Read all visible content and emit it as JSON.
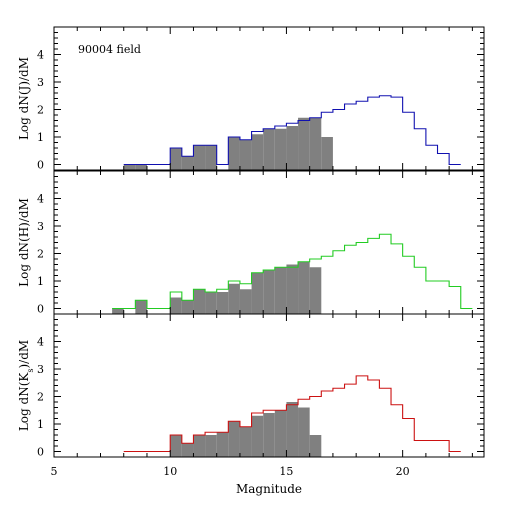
{
  "chart_data": {
    "type": "histogram-stack",
    "xlabel": "Magnitude",
    "xlim": [
      5,
      23.5
    ],
    "xticks": [
      5,
      10,
      15,
      20
    ],
    "ylim": [
      -0.2,
      5
    ],
    "yticks": [
      0,
      1,
      2,
      3,
      4
    ],
    "bin_width": 0.5,
    "panels": [
      {
        "ylabel": "Log dN(J)/dM",
        "ylabel_text": "Log dN(J)/dM",
        "annotation": "90004 field",
        "line_color": "#1010b0",
        "line_bins": [
          {
            "x0": 8.0,
            "v": 0.0
          },
          {
            "x0": 8.5,
            "v": 0.0
          },
          {
            "x0": 9.0,
            "v": 0.0
          },
          {
            "x0": 9.5,
            "v": 0.0
          },
          {
            "x0": 10.0,
            "v": 0.6
          },
          {
            "x0": 10.5,
            "v": 0.3
          },
          {
            "x0": 11.0,
            "v": 0.7
          },
          {
            "x0": 11.5,
            "v": 0.7
          },
          {
            "x0": 12.0,
            "v": 0.0
          },
          {
            "x0": 12.5,
            "v": 1.0
          },
          {
            "x0": 13.0,
            "v": 0.9
          },
          {
            "x0": 13.5,
            "v": 1.2
          },
          {
            "x0": 14.0,
            "v": 1.3
          },
          {
            "x0": 14.5,
            "v": 1.4
          },
          {
            "x0": 15.0,
            "v": 1.5
          },
          {
            "x0": 15.5,
            "v": 1.6
          },
          {
            "x0": 16.0,
            "v": 1.7
          },
          {
            "x0": 16.5,
            "v": 1.9
          },
          {
            "x0": 17.0,
            "v": 2.0
          },
          {
            "x0": 17.5,
            "v": 2.2
          },
          {
            "x0": 18.0,
            "v": 2.3
          },
          {
            "x0": 18.5,
            "v": 2.45
          },
          {
            "x0": 19.0,
            "v": 2.5
          },
          {
            "x0": 19.5,
            "v": 2.45
          },
          {
            "x0": 20.0,
            "v": 1.9
          },
          {
            "x0": 20.5,
            "v": 1.3
          },
          {
            "x0": 21.0,
            "v": 0.7
          },
          {
            "x0": 21.5,
            "v": 0.4
          },
          {
            "x0": 22.0,
            "v": 0.0
          }
        ],
        "filled_bins": [
          {
            "x0": 8.0,
            "v": 0.0
          },
          {
            "x0": 8.5,
            "v": 0.0
          },
          {
            "x0": 10.0,
            "v": 0.6
          },
          {
            "x0": 10.5,
            "v": 0.3
          },
          {
            "x0": 11.0,
            "v": 0.7
          },
          {
            "x0": 11.5,
            "v": 0.7
          },
          {
            "x0": 12.5,
            "v": 1.0
          },
          {
            "x0": 13.0,
            "v": 0.9
          },
          {
            "x0": 13.5,
            "v": 1.1
          },
          {
            "x0": 14.0,
            "v": 1.3
          },
          {
            "x0": 14.5,
            "v": 1.3
          },
          {
            "x0": 15.0,
            "v": 1.4
          },
          {
            "x0": 15.5,
            "v": 1.7
          },
          {
            "x0": 16.0,
            "v": 1.7
          },
          {
            "x0": 16.5,
            "v": 1.0
          }
        ]
      },
      {
        "ylabel": "Log dN(H)/dM",
        "ylabel_text": "Log dN(H)/dM",
        "annotation": "",
        "line_color": "#22cc22",
        "line_bins": [
          {
            "x0": 7.5,
            "v": 0.0
          },
          {
            "x0": 8.0,
            "v": 0.0
          },
          {
            "x0": 8.5,
            "v": 0.3
          },
          {
            "x0": 9.0,
            "v": 0.0
          },
          {
            "x0": 9.5,
            "v": 0.0
          },
          {
            "x0": 10.0,
            "v": 0.6
          },
          {
            "x0": 10.5,
            "v": 0.3
          },
          {
            "x0": 11.0,
            "v": 0.7
          },
          {
            "x0": 11.5,
            "v": 0.6
          },
          {
            "x0": 12.0,
            "v": 0.7
          },
          {
            "x0": 12.5,
            "v": 1.0
          },
          {
            "x0": 13.0,
            "v": 0.9
          },
          {
            "x0": 13.5,
            "v": 1.3
          },
          {
            "x0": 14.0,
            "v": 1.4
          },
          {
            "x0": 14.5,
            "v": 1.5
          },
          {
            "x0": 15.0,
            "v": 1.5
          },
          {
            "x0": 15.5,
            "v": 1.7
          },
          {
            "x0": 16.0,
            "v": 1.8
          },
          {
            "x0": 16.5,
            "v": 1.9
          },
          {
            "x0": 17.0,
            "v": 2.1
          },
          {
            "x0": 17.5,
            "v": 2.3
          },
          {
            "x0": 18.0,
            "v": 2.4
          },
          {
            "x0": 18.5,
            "v": 2.55
          },
          {
            "x0": 19.0,
            "v": 2.7
          },
          {
            "x0": 19.5,
            "v": 2.35
          },
          {
            "x0": 20.0,
            "v": 1.9
          },
          {
            "x0": 20.5,
            "v": 1.5
          },
          {
            "x0": 21.0,
            "v": 1.0
          },
          {
            "x0": 21.5,
            "v": 1.0
          },
          {
            "x0": 22.0,
            "v": 0.8
          },
          {
            "x0": 22.5,
            "v": 0.0
          }
        ],
        "filled_bins": [
          {
            "x0": 7.5,
            "v": 0.0
          },
          {
            "x0": 8.5,
            "v": 0.3
          },
          {
            "x0": 10.0,
            "v": 0.4
          },
          {
            "x0": 10.5,
            "v": 0.3
          },
          {
            "x0": 11.0,
            "v": 0.7
          },
          {
            "x0": 11.5,
            "v": 0.6
          },
          {
            "x0": 12.0,
            "v": 0.6
          },
          {
            "x0": 12.5,
            "v": 0.9
          },
          {
            "x0": 13.0,
            "v": 0.7
          },
          {
            "x0": 13.5,
            "v": 1.3
          },
          {
            "x0": 14.0,
            "v": 1.4
          },
          {
            "x0": 14.5,
            "v": 1.5
          },
          {
            "x0": 15.0,
            "v": 1.6
          },
          {
            "x0": 15.5,
            "v": 1.7
          },
          {
            "x0": 16.0,
            "v": 1.5
          }
        ]
      },
      {
        "ylabel": "Log dN(Ks)/dM",
        "ylabel_text": "Log dN(K",
        "ylabel_sub": "s",
        "ylabel_tail": ")/dM",
        "annotation": "",
        "line_color": "#cc1111",
        "line_bins": [
          {
            "x0": 8.0,
            "v": 0.0
          },
          {
            "x0": 8.5,
            "v": 0.0
          },
          {
            "x0": 9.0,
            "v": 0.0
          },
          {
            "x0": 9.5,
            "v": 0.0
          },
          {
            "x0": 10.0,
            "v": 0.6
          },
          {
            "x0": 10.5,
            "v": 0.3
          },
          {
            "x0": 11.0,
            "v": 0.6
          },
          {
            "x0": 11.5,
            "v": 0.7
          },
          {
            "x0": 12.0,
            "v": 0.7
          },
          {
            "x0": 12.5,
            "v": 1.1
          },
          {
            "x0": 13.0,
            "v": 0.9
          },
          {
            "x0": 13.5,
            "v": 1.4
          },
          {
            "x0": 14.0,
            "v": 1.5
          },
          {
            "x0": 14.5,
            "v": 1.5
          },
          {
            "x0": 15.0,
            "v": 1.7
          },
          {
            "x0": 15.5,
            "v": 1.9
          },
          {
            "x0": 16.0,
            "v": 2.0
          },
          {
            "x0": 16.5,
            "v": 2.2
          },
          {
            "x0": 17.0,
            "v": 2.3
          },
          {
            "x0": 17.5,
            "v": 2.45
          },
          {
            "x0": 18.0,
            "v": 2.75
          },
          {
            "x0": 18.5,
            "v": 2.6
          },
          {
            "x0": 19.0,
            "v": 2.3
          },
          {
            "x0": 19.5,
            "v": 1.7
          },
          {
            "x0": 20.0,
            "v": 1.2
          },
          {
            "x0": 20.5,
            "v": 0.4
          },
          {
            "x0": 21.0,
            "v": 0.4
          },
          {
            "x0": 21.5,
            "v": 0.4
          },
          {
            "x0": 22.0,
            "v": 0.0
          }
        ],
        "filled_bins": [
          {
            "x0": 10.0,
            "v": 0.6
          },
          {
            "x0": 10.5,
            "v": 0.3
          },
          {
            "x0": 11.0,
            "v": 0.6
          },
          {
            "x0": 11.5,
            "v": 0.6
          },
          {
            "x0": 12.0,
            "v": 0.7
          },
          {
            "x0": 12.5,
            "v": 1.1
          },
          {
            "x0": 13.0,
            "v": 0.9
          },
          {
            "x0": 13.5,
            "v": 1.3
          },
          {
            "x0": 14.0,
            "v": 1.4
          },
          {
            "x0": 14.5,
            "v": 1.5
          },
          {
            "x0": 15.0,
            "v": 1.8
          },
          {
            "x0": 15.5,
            "v": 1.6
          },
          {
            "x0": 16.0,
            "v": 0.6
          }
        ]
      }
    ],
    "filled_color": "#808080"
  }
}
